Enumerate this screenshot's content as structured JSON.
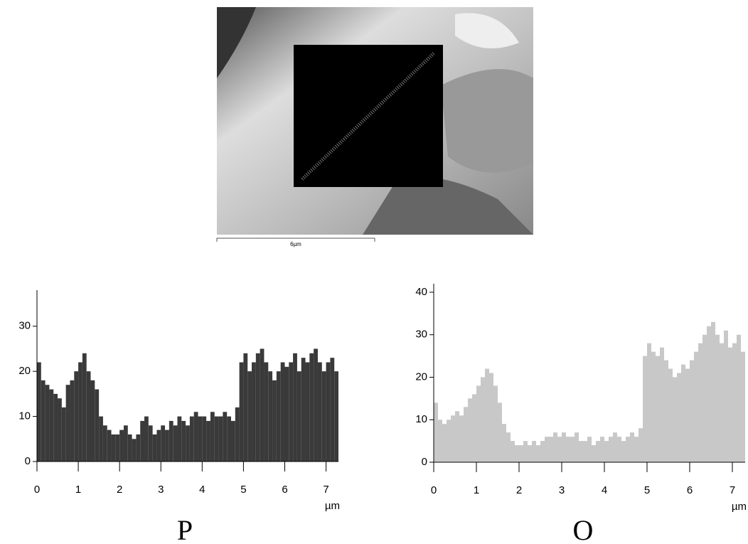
{
  "image": {
    "scale_label": "6µm"
  },
  "chart_data": [
    {
      "type": "histogram",
      "title": "P",
      "xlabel": "µm",
      "color": "#3a3a3a",
      "xlim": [
        0,
        7.3
      ],
      "xticks": [
        0,
        1,
        2,
        3,
        4,
        5,
        6,
        7
      ],
      "ylim": [
        0,
        38
      ],
      "yticks": [
        0,
        10,
        20,
        30
      ],
      "bins": [
        0,
        0.1,
        0.2,
        0.3,
        0.4,
        0.5,
        0.6,
        0.7,
        0.8,
        0.9,
        1,
        1.1,
        1.2,
        1.3,
        1.4,
        1.5,
        1.6,
        1.7,
        1.8,
        1.9,
        2,
        2.1,
        2.2,
        2.3,
        2.4,
        2.5,
        2.6,
        2.7,
        2.8,
        2.9,
        3,
        3.1,
        3.2,
        3.3,
        3.4,
        3.5,
        3.6,
        3.7,
        3.8,
        3.9,
        4,
        4.1,
        4.2,
        4.3,
        4.4,
        4.5,
        4.6,
        4.7,
        4.8,
        4.9,
        5,
        5.1,
        5.2,
        5.3,
        5.4,
        5.5,
        5.6,
        5.7,
        5.8,
        5.9,
        6,
        6.1,
        6.2,
        6.3,
        6.4,
        6.5,
        6.6,
        6.7,
        6.8,
        6.9,
        7,
        7.1,
        7.2,
        7.3
      ],
      "counts": [
        22,
        18,
        17,
        16,
        15,
        14,
        12,
        17,
        18,
        20,
        22,
        24,
        20,
        18,
        16,
        10,
        8,
        7,
        6,
        6,
        7,
        8,
        6,
        5,
        6,
        9,
        10,
        8,
        6,
        7,
        8,
        7,
        9,
        8,
        10,
        9,
        8,
        10,
        11,
        10,
        10,
        9,
        11,
        10,
        10,
        11,
        10,
        9,
        12,
        22,
        24,
        20,
        22,
        24,
        25,
        22,
        20,
        18,
        20,
        22,
        21,
        22,
        24,
        20,
        23,
        22,
        24,
        25,
        22,
        20,
        22,
        23,
        20
      ]
    },
    {
      "type": "histogram",
      "title": "O",
      "xlabel": "µm",
      "color": "#c8c8c8",
      "xlim": [
        0,
        7.3
      ],
      "xticks": [
        0,
        1,
        2,
        3,
        4,
        5,
        6,
        7
      ],
      "ylim": [
        0,
        42
      ],
      "yticks": [
        0,
        10,
        20,
        30,
        40
      ],
      "bins": [
        0,
        0.1,
        0.2,
        0.3,
        0.4,
        0.5,
        0.6,
        0.7,
        0.8,
        0.9,
        1,
        1.1,
        1.2,
        1.3,
        1.4,
        1.5,
        1.6,
        1.7,
        1.8,
        1.9,
        2,
        2.1,
        2.2,
        2.3,
        2.4,
        2.5,
        2.6,
        2.7,
        2.8,
        2.9,
        3,
        3.1,
        3.2,
        3.3,
        3.4,
        3.5,
        3.6,
        3.7,
        3.8,
        3.9,
        4,
        4.1,
        4.2,
        4.3,
        4.4,
        4.5,
        4.6,
        4.7,
        4.8,
        4.9,
        5,
        5.1,
        5.2,
        5.3,
        5.4,
        5.5,
        5.6,
        5.7,
        5.8,
        5.9,
        6,
        6.1,
        6.2,
        6.3,
        6.4,
        6.5,
        6.6,
        6.7,
        6.8,
        6.9,
        7,
        7.1,
        7.2,
        7.3
      ],
      "counts": [
        14,
        10,
        9,
        10,
        11,
        12,
        11,
        13,
        15,
        16,
        18,
        20,
        22,
        21,
        18,
        14,
        9,
        7,
        5,
        4,
        4,
        5,
        4,
        5,
        4,
        5,
        6,
        6,
        7,
        6,
        7,
        6,
        6,
        7,
        5,
        5,
        6,
        4,
        5,
        6,
        5,
        6,
        7,
        6,
        5,
        6,
        7,
        6,
        8,
        25,
        28,
        26,
        25,
        27,
        24,
        22,
        20,
        21,
        23,
        22,
        24,
        26,
        28,
        30,
        32,
        33,
        30,
        28,
        31,
        27,
        28,
        30,
        26
      ]
    }
  ]
}
